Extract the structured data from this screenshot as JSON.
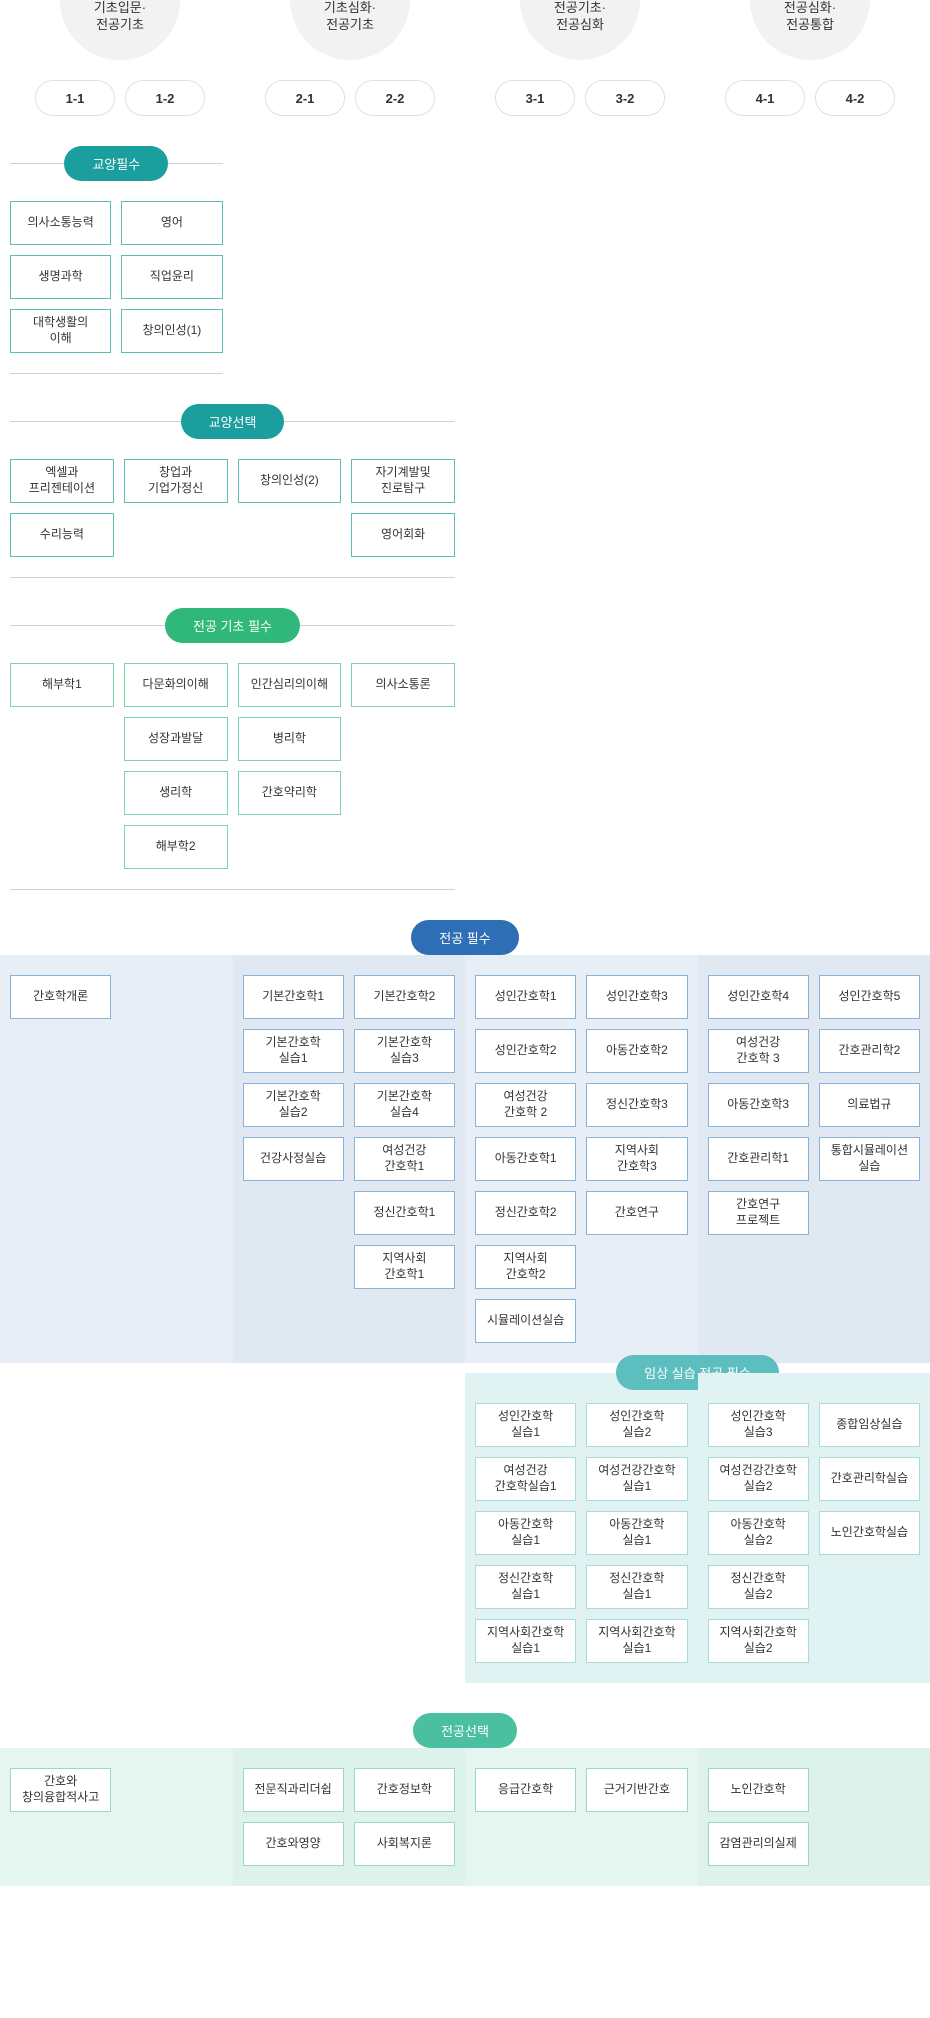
{
  "colors": {
    "teal": "#1a9e9e",
    "tealBorder": "#5bbfb8",
    "green": "#2fb87a",
    "greenBorder": "#7dd4a8",
    "blue": "#2e6eb5",
    "blueBorder": "#8ab3d9",
    "cyan": "#5dbec0",
    "cyanBorder": "#a8dcd9",
    "mint": "#4bc0a0",
    "mintBorder": "#9ad9c5",
    "lightBlue1": "#e8eef5",
    "lightBlue2": "#e0e9f2",
    "lightCyan": "#e0f2f2",
    "lightMint1": "#e5f5ef",
    "lightMint2": "#ddf2ea"
  },
  "years": [
    {
      "label": "기초입문·\n전공기초",
      "semesters": [
        "1-1",
        "1-2"
      ]
    },
    {
      "label": "기초심화·\n전공기초",
      "semesters": [
        "2-1",
        "2-2"
      ]
    },
    {
      "label": "전공기초·\n전공심화",
      "semesters": [
        "3-1",
        "3-2"
      ]
    },
    {
      "label": "전공심화·\n전공통합",
      "semesters": [
        "4-1",
        "4-2"
      ]
    }
  ],
  "sections": {
    "liberalReq": {
      "title": "교양필수",
      "span": 2,
      "cols": [
        [
          "의사소통능력",
          "생명과학",
          "대학생활의\n이해"
        ],
        [
          "영어",
          "직업윤리",
          "창의인성(1)"
        ]
      ]
    },
    "liberalElec": {
      "title": "교양선택",
      "span": 4,
      "cols": [
        [
          "엑셀과\n프리젠테이션",
          "수리능력"
        ],
        [
          "창업과\n기업가정신"
        ],
        [
          "창의인성(2)"
        ],
        [
          "자기계발및\n진로탐구",
          "영어회화"
        ]
      ]
    },
    "majorBasicReq": {
      "title": "전공 기초 필수",
      "span": 4,
      "cols": [
        [
          "해부학1"
        ],
        [
          "다문화의이해",
          "성장과발달",
          "생리학",
          "해부학2"
        ],
        [
          "인간심리의이해",
          "병리학",
          "간호약리학"
        ],
        [
          "의사소통론"
        ]
      ]
    },
    "majorReq": {
      "title": "전공 필수",
      "cells": [
        {
          "bg": "lightBlue1",
          "cols": [
            [
              "간호학개론"
            ],
            []
          ]
        },
        {
          "bg": "lightBlue2",
          "cols": [
            [
              "기본간호학1",
              "기본간호학\n실습1",
              "기본간호학\n실습2",
              "건강사정실습"
            ],
            [
              "기본간호학2",
              "기본간호학\n실습3",
              "기본간호학\n실습4",
              "여성건강\n간호학1",
              "정신간호학1",
              "지역사회\n간호학1"
            ]
          ]
        },
        {
          "bg": "lightBlue1",
          "cols": [
            [
              "성인간호학1",
              "성인간호학2",
              "여성건강\n간호학 2",
              "아동간호학1",
              "정신간호학2",
              "지역사회\n간호학2",
              "시뮬레이션실습"
            ],
            [
              "성인간호학3",
              "아동간호학2",
              "정신간호학3",
              "지역사회\n간호학3",
              "간호연구"
            ]
          ]
        },
        {
          "bg": "lightBlue2",
          "cols": [
            [
              "성인간호학4",
              "여성건강\n간호학 3",
              "아동간호학3",
              "간호관리학1",
              "간호연구\n프로젝트"
            ],
            [
              "성인간호학5",
              "간호관리학2",
              "의료법규",
              "통합시뮬레이션\n실습"
            ]
          ]
        }
      ]
    },
    "clinical": {
      "title": "임상 실습 전공 필수",
      "cells": [
        {
          "bg": "lightCyan",
          "cols": [
            [
              "성인간호학\n실습1",
              "여성건강\n간호학실습1",
              "아동간호학\n실습1",
              "정신간호학\n실습1",
              "지역사회간호학\n실습1"
            ],
            [
              "성인간호학\n실습2",
              "여성건강간호학\n실습1",
              "아동간호학\n실습1",
              "정신간호학\n실습1",
              "지역사회간호학\n실습1"
            ]
          ]
        },
        {
          "bg": "lightCyan",
          "cols": [
            [
              "성인간호학\n실습3",
              "여성건강간호학\n실습2",
              "아동간호학\n실습2",
              "정신간호학\n실습2",
              "지역사회간호학\n실습2"
            ],
            [
              "종합임상실습",
              "간호관리학실습",
              "노인간호학실습"
            ]
          ]
        }
      ]
    },
    "majorElec": {
      "title": "전공선택",
      "cells": [
        {
          "bg": "lightMint1",
          "cols": [
            [
              "간호와\n창의융합적사고"
            ],
            []
          ]
        },
        {
          "bg": "lightMint2",
          "cols": [
            [
              "전문직과리더쉽",
              "간호와영양"
            ],
            [
              "간호정보학",
              "사회복지론"
            ]
          ]
        },
        {
          "bg": "lightMint1",
          "cols": [
            [
              "응급간호학"
            ],
            [
              "근거기반간호"
            ]
          ]
        },
        {
          "bg": "lightMint2",
          "cols": [
            [
              "노인간호학",
              "감염관리의실제"
            ],
            []
          ]
        }
      ]
    }
  }
}
